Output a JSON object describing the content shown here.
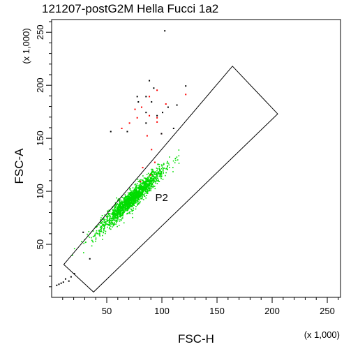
{
  "chart_data": {
    "type": "scatter",
    "title": "121207-postG2M Hella Fucci 1a2",
    "xlabel": "FSC-H",
    "ylabel": "FSC-A",
    "x_multiplier": "(x 1,000)",
    "y_multiplier": "(x 1,000)",
    "xlim": [
      0,
      262
    ],
    "ylim": [
      0,
      262
    ],
    "x_ticks": [
      50,
      100,
      150,
      200,
      250
    ],
    "y_ticks": [
      50,
      100,
      150,
      200,
      250
    ],
    "gate": {
      "label": "P2",
      "polygon": [
        [
          11,
          31
        ],
        [
          164,
          218
        ],
        [
          205,
          173
        ],
        [
          38,
          5
        ]
      ]
    },
    "colors": {
      "in_gate": "#00dd00",
      "red_events": "#ff0000",
      "black_events": "#000000",
      "gate_line": "#000000"
    },
    "series": [
      {
        "values": [
          {
            "x": 72,
            "y": 93,
            "sigma_major": 20,
            "sigma_minor": 3.2,
            "count": 1700
          }
        ]
      },
      {
        "values": [
          [
            63,
            160
          ],
          [
            70,
            165
          ],
          [
            77,
            170
          ],
          [
            88,
            172
          ],
          [
            95,
            170
          ],
          [
            88,
            190
          ],
          [
            95,
            196
          ],
          [
            75,
            178
          ],
          [
            103,
            183
          ],
          [
            121,
            192
          ],
          [
            81,
            180
          ],
          [
            86,
            153
          ],
          [
            93,
            128
          ],
          [
            89,
            116
          ],
          [
            80,
            110
          ],
          [
            82,
            123
          ],
          [
            90,
            140
          ],
          [
            99,
            155
          ],
          [
            95,
            166
          ]
        ]
      },
      {
        "values": [
          [
            102,
            252
          ],
          [
            88,
            205
          ],
          [
            85,
            190
          ],
          [
            92,
            198
          ],
          [
            77,
            190
          ],
          [
            78,
            185
          ],
          [
            95,
            172
          ],
          [
            105,
            180
          ],
          [
            53,
            157
          ],
          [
            68,
            157
          ],
          [
            99,
            155
          ],
          [
            85,
            165
          ],
          [
            113,
            182
          ],
          [
            121,
            200
          ],
          [
            100,
            175
          ],
          [
            85,
            175
          ],
          [
            28,
            62
          ],
          [
            34,
            37
          ],
          [
            90,
            185
          ],
          [
            110,
            160
          ],
          [
            17,
            20
          ],
          [
            12,
            18
          ],
          [
            8,
            14
          ],
          [
            4,
            12
          ],
          [
            15,
            16
          ],
          [
            20,
            23
          ],
          [
            6,
            13
          ],
          [
            10,
            15
          ]
        ]
      }
    ]
  }
}
